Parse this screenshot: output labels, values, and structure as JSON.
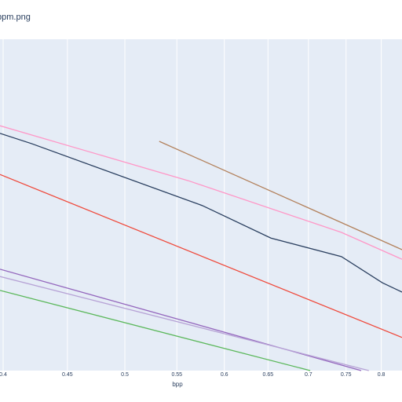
{
  "chart_data": {
    "type": "line",
    "title": "ppm.png",
    "x_label": "bpp",
    "xscale": "log",
    "grid": true,
    "xlim": [
      0.3977,
      0.831
    ],
    "ylim": [
      0,
      100
    ],
    "xticks": [
      0.4,
      0.45,
      0.5,
      0.55,
      0.6,
      0.65,
      0.7,
      0.75,
      0.8
    ],
    "series": [
      {
        "color": "#2a3f5f",
        "x": [
          0.3977,
          0.4214,
          0.5763,
          0.6535,
          0.7437,
          0.8017,
          0.831
        ],
        "values": [
          71.6,
          68.5,
          49.8,
          40.0,
          34.4,
          26.5,
          23.7
        ]
      },
      {
        "color": "#ff97c7",
        "x": [
          0.3977,
          0.5618,
          0.7437,
          0.831
        ],
        "values": [
          73.9,
          57.3,
          41.7,
          33.6
        ]
      },
      {
        "color": "#b3825d",
        "x": [
          0.5325,
          0.831
        ],
        "values": [
          69.2,
          36.5
        ]
      },
      {
        "color": "#ef4a3c",
        "x": [
          0.3977,
          0.831
        ],
        "values": [
          59.2,
          10.0
        ]
      },
      {
        "color": "#9467bd",
        "x": [
          0.3977,
          0.771
        ],
        "values": [
          30.6,
          0
        ]
      },
      {
        "color": "#b7a3d6",
        "x": [
          0.3977,
          0.782
        ],
        "values": [
          28.4,
          0
        ]
      },
      {
        "color": "#5cb85c",
        "x": [
          0.3977,
          0.7023
        ],
        "values": [
          24.2,
          0
        ]
      }
    ]
  }
}
